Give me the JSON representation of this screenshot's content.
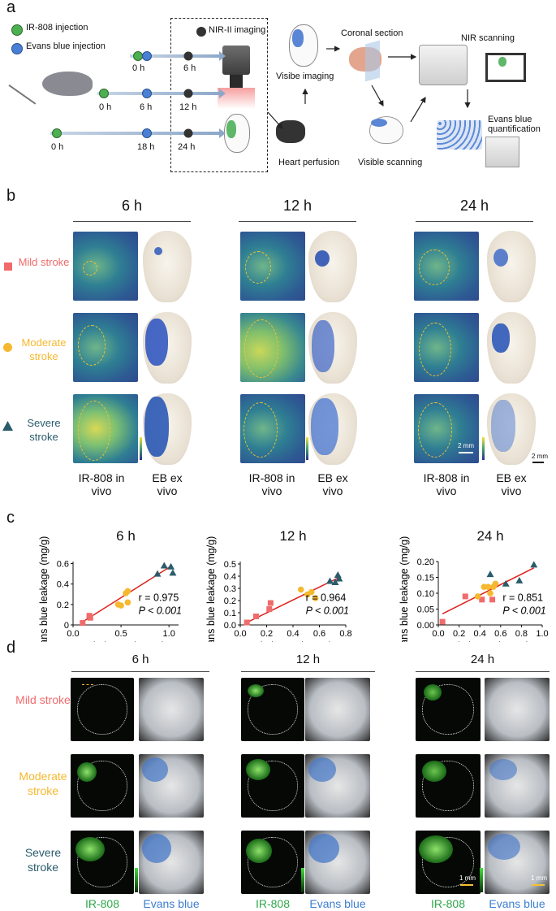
{
  "panel_a": {
    "letter": "a",
    "legend": [
      "IR-808 injection",
      "Evans blue injection",
      "NIR-II imaging"
    ],
    "timelines": [
      [
        "0 h",
        "6 h"
      ],
      [
        "0 h",
        "6 h",
        "12 h"
      ],
      [
        "0 h",
        "18 h",
        "24 h"
      ]
    ],
    "steps": {
      "visible_imaging": "Visibe imaging",
      "coronal_section": "Coronal section",
      "nir_scanning": "NIR scanning",
      "heart_perfusion": "Heart perfusion",
      "visible_scanning": "Visible scanning",
      "evans_quant": "Evans blue quantification"
    },
    "colors": {
      "green": "#4caf50",
      "blue": "#4a7fd6",
      "dark": "#333333"
    }
  },
  "panel_b": {
    "letter": "b",
    "timepoints": [
      "6 h",
      "12 h",
      "24 h"
    ],
    "rows": [
      "Mild stroke",
      "Moderate stroke",
      "Severe stroke"
    ],
    "row_colors": [
      "#f06b6b",
      "#f5b82e",
      "#2a5c6b"
    ],
    "col_label_1": "IR-808 in vivo",
    "col_label_2": "EB ex vivo",
    "scale_bar": "2 mm"
  },
  "panel_c": {
    "letter": "c",
    "chart_data": [
      {
        "type": "scatter",
        "title": "6 h",
        "xlabel": "Relative FL intensity",
        "ylabel": "Evans blue leakage (mg/g)",
        "xlim": [
          0.0,
          1.1
        ],
        "ylim": [
          0.0,
          0.62
        ],
        "xticks": [
          "0.0",
          "0.5",
          "1.0"
        ],
        "yticks": [
          "0",
          "0.2",
          "0.4",
          "0.6"
        ],
        "series": [
          {
            "name": "Mild",
            "marker": "square",
            "x": [
              0.1,
              0.17,
              0.18
            ],
            "y": [
              0.02,
              0.09,
              0.07
            ]
          },
          {
            "name": "Moderate",
            "marker": "circle",
            "x": [
              0.47,
              0.5,
              0.55,
              0.57,
              0.57
            ],
            "y": [
              0.2,
              0.19,
              0.31,
              0.33,
              0.22
            ]
          },
          {
            "name": "Severe",
            "marker": "triangle",
            "x": [
              0.88,
              0.95,
              1.02,
              1.04
            ],
            "y": [
              0.5,
              0.58,
              0.57,
              0.51
            ]
          }
        ],
        "fit": {
          "x": [
            0.1,
            1.03
          ],
          "y": [
            0.03,
            0.58
          ]
        },
        "r_text": "r = 0.975",
        "p_text": "P < 0.001"
      },
      {
        "type": "scatter",
        "title": "12 h",
        "xlabel": "Relative FL intensity",
        "ylabel": "Evans blue leakage (mg/g)",
        "xlim": [
          0.0,
          0.8
        ],
        "ylim": [
          0.0,
          0.52
        ],
        "xticks": [
          "0.0",
          "0.2",
          "0.4",
          "0.6",
          "0.8"
        ],
        "yticks": [
          "0.0",
          "0.1",
          "0.2",
          "0.3",
          "0.4",
          "0.5"
        ],
        "series": [
          {
            "name": "Mild",
            "marker": "square",
            "x": [
              0.05,
              0.12,
              0.22,
              0.23
            ],
            "y": [
              0.02,
              0.07,
              0.13,
              0.18
            ]
          },
          {
            "name": "Moderate",
            "marker": "circle",
            "x": [
              0.46,
              0.51,
              0.54,
              0.57
            ],
            "y": [
              0.29,
              0.25,
              0.27,
              0.22
            ]
          },
          {
            "name": "Severe",
            "marker": "triangle",
            "x": [
              0.68,
              0.72,
              0.74,
              0.75
            ],
            "y": [
              0.36,
              0.35,
              0.41,
              0.38
            ]
          }
        ],
        "fit": {
          "x": [
            0.05,
            0.75
          ],
          "y": [
            0.02,
            0.39
          ]
        },
        "r_text": "r = 0.964",
        "p_text": "P < 0.001"
      },
      {
        "type": "scatter",
        "title": "24 h",
        "xlabel": "Relative FL intensity",
        "ylabel": "Evans blue leakage (mg/g)",
        "xlim": [
          0.0,
          1.0
        ],
        "ylim": [
          0.0,
          0.2
        ],
        "xticks": [
          "0.0",
          "0.2",
          "0.4",
          "0.6",
          "0.8",
          "1.0"
        ],
        "yticks": [
          "0.00",
          "0.05",
          "0.10",
          "0.15",
          "0.20"
        ],
        "series": [
          {
            "name": "Mild",
            "marker": "square",
            "x": [
              0.04,
              0.26,
              0.42,
              0.52
            ],
            "y": [
              0.01,
              0.09,
              0.08,
              0.08
            ]
          },
          {
            "name": "Moderate",
            "marker": "circle",
            "x": [
              0.38,
              0.44,
              0.48,
              0.5,
              0.53,
              0.55
            ],
            "y": [
              0.09,
              0.12,
              0.12,
              0.1,
              0.12,
              0.13
            ]
          },
          {
            "name": "Severe",
            "marker": "triangle",
            "x": [
              0.5,
              0.65,
              0.78,
              0.92
            ],
            "y": [
              0.16,
              0.13,
              0.14,
              0.19
            ]
          }
        ],
        "fit": {
          "x": [
            0.04,
            0.92
          ],
          "y": [
            0.035,
            0.18
          ]
        },
        "r_text": "r = 0.851",
        "p_text": "P < 0.001"
      }
    ],
    "marker_colors": {
      "Mild": "#f06b6b",
      "Moderate": "#f5b82e",
      "Severe": "#2a5c6b",
      "fit": "#e0201b"
    }
  },
  "panel_d": {
    "letter": "d",
    "timepoints": [
      "6 h",
      "12 h",
      "24 h"
    ],
    "rows": [
      "Mild stroke",
      "Moderate stroke",
      "Severe stroke"
    ],
    "row_colors": [
      "#f06b6b",
      "#f5b82e",
      "#2a5c6b"
    ],
    "col_label_1": "IR-808",
    "col_label_2": "Evans blue",
    "col_label_colors": [
      "#2fa84a",
      "#3b7ed1"
    ],
    "scale_bar": "1 mm"
  }
}
